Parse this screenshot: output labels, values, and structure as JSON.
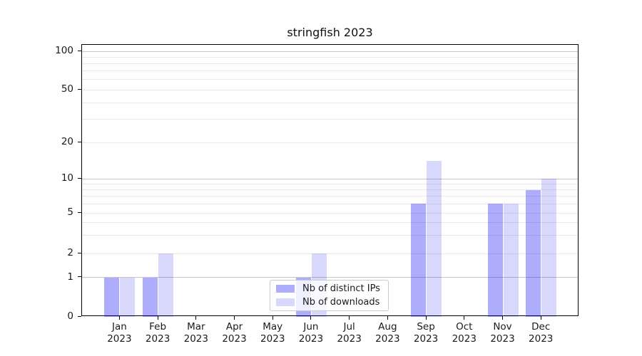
{
  "title": "stringfish 2023",
  "colors": {
    "bar_distinct_ips": "rgba(15,15,245,0.34)",
    "bar_downloads": "rgba(15,15,245,0.16)",
    "grid_major": "#c6c6c6",
    "grid_minor": "#e9e9e9",
    "axis": "#000000",
    "legend_border": "#cccccc"
  },
  "chart_data": {
    "type": "bar",
    "title": "stringfish 2023",
    "categories": [
      "Jan 2023",
      "Feb 2023",
      "Mar 2023",
      "Apr 2023",
      "May 2023",
      "Jun 2023",
      "Jul 2023",
      "Aug 2023",
      "Sep 2023",
      "Oct 2023",
      "Nov 2023",
      "Dec 2023"
    ],
    "series": [
      {
        "name": "Nb of distinct IPs",
        "key": "bar_distinct_ips",
        "values": [
          1,
          1,
          0,
          0,
          0,
          1,
          0,
          0,
          6,
          0,
          6,
          8
        ]
      },
      {
        "name": "Nb of downloads",
        "key": "bar_downloads",
        "values": [
          1,
          2,
          0,
          0,
          0,
          2,
          0,
          0,
          14,
          0,
          6,
          10
        ]
      }
    ],
    "yscale": "log-like with linear segment 0-1",
    "ytick_labels": [
      "0",
      "1",
      "2",
      "5",
      "10",
      "20",
      "50",
      "100"
    ],
    "ytick_values": [
      0,
      1,
      2,
      5,
      10,
      20,
      50,
      100
    ],
    "major_gridline_values": [
      1,
      10,
      100
    ],
    "minor_gridline_values": [
      2,
      3,
      4,
      5,
      6,
      7,
      8,
      9,
      20,
      30,
      40,
      50,
      60,
      70,
      80,
      90
    ],
    "ylim": [
      0,
      112
    ],
    "grid": "on",
    "legend_position": "lower center"
  }
}
